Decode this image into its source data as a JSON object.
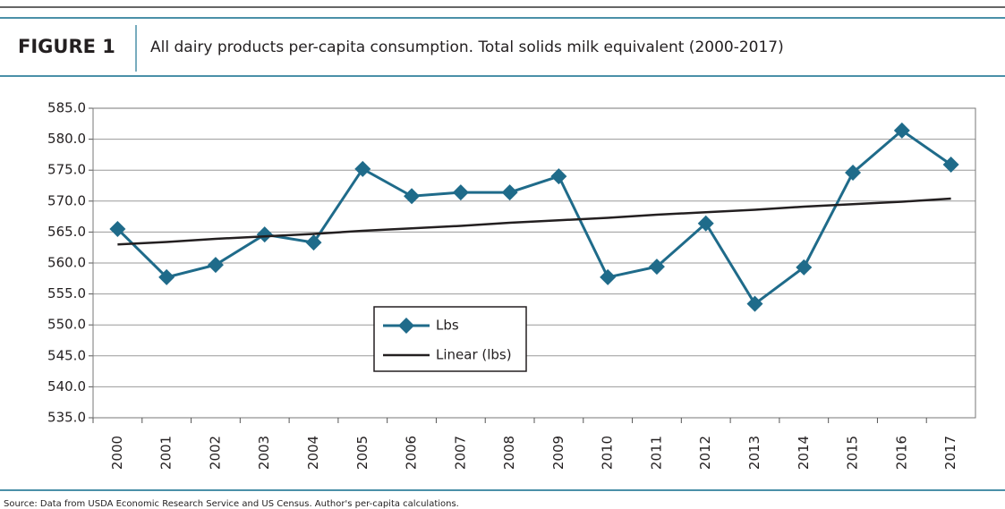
{
  "figure_label": "FIGURE 1",
  "chart_data": {
    "type": "line",
    "title": "All dairy products per-capita consumption. Total solids milk equivalent (2000-2017)",
    "categories": [
      "2000",
      "2001",
      "2002",
      "2003",
      "2004",
      "2005",
      "2006",
      "2007",
      "2008",
      "2009",
      "2010",
      "2011",
      "2012",
      "2013",
      "2014",
      "2015",
      "2016",
      "2017"
    ],
    "series": [
      {
        "name": "Lbs",
        "color": "#1f6b8a",
        "values": [
          565.5,
          557.7,
          559.7,
          564.6,
          563.3,
          575.2,
          570.8,
          571.4,
          571.4,
          574.0,
          557.7,
          559.4,
          566.4,
          553.4,
          559.3,
          574.6,
          581.4,
          575.9
        ]
      },
      {
        "name": "Linear (lbs)",
        "color": "#231f20",
        "values": [
          563.0,
          563.4,
          563.9,
          564.3,
          564.7,
          565.2,
          565.6,
          566.0,
          566.5,
          566.9,
          567.3,
          567.8,
          568.2,
          568.6,
          569.1,
          569.5,
          569.9,
          570.4
        ]
      }
    ],
    "ylim": [
      535,
      585
    ],
    "yticks": [
      {
        "value": 535,
        "label": "535.0"
      },
      {
        "value": 540,
        "label": "540.0"
      },
      {
        "value": 545,
        "label": "545.0"
      },
      {
        "value": 550,
        "label": "550.0"
      },
      {
        "value": 555,
        "label": "555.0"
      },
      {
        "value": 560,
        "label": "560.0"
      },
      {
        "value": 565,
        "label": "565.0"
      },
      {
        "value": 570,
        "label": "570.0"
      },
      {
        "value": 575,
        "label": "575.0"
      },
      {
        "value": 580,
        "label": "580.0"
      },
      {
        "value": 585,
        "label": "585.0"
      }
    ],
    "grid": true,
    "source": "Source: Data from USDA Economic Research Service and US Census. Author's per-capita calculations."
  }
}
